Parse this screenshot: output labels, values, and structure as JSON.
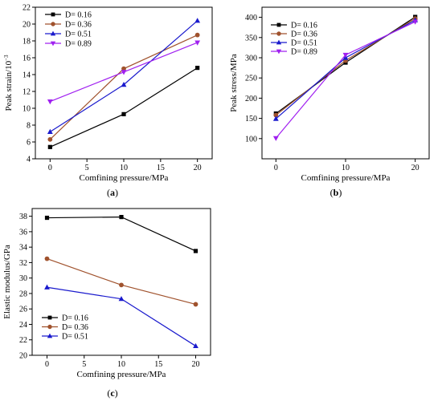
{
  "figure": {
    "panels": [
      {
        "label_open": "(",
        "label_letter": "a",
        "label_close": ")"
      },
      {
        "label_open": "(",
        "label_letter": "b",
        "label_close": ")"
      },
      {
        "label_open": "(",
        "label_letter": "c",
        "label_close": ")"
      }
    ]
  },
  "chart_data": [
    {
      "type": "line",
      "xlabel": "Comfining pressure/MPa",
      "ylabel": "Peak strain/10",
      "ylabel_superscript": "−3",
      "xlim": [
        -2,
        22
      ],
      "ylim": [
        4,
        22
      ],
      "xticks": [
        0,
        5,
        10,
        15,
        20
      ],
      "yticks": [
        4,
        6,
        8,
        10,
        12,
        14,
        16,
        18,
        20,
        22
      ],
      "grid": false,
      "legend_position": "top-left",
      "x": [
        0,
        10,
        20
      ],
      "series": [
        {
          "name": "D= 0.16",
          "values": [
            5.4,
            9.3,
            14.8
          ],
          "color": "#000000",
          "marker": "square"
        },
        {
          "name": "D= 0.36",
          "values": [
            6.3,
            14.7,
            18.7
          ],
          "color": "#a0522d",
          "marker": "circle"
        },
        {
          "name": "D= 0.51",
          "values": [
            7.2,
            12.8,
            20.4
          ],
          "color": "#1a1acd",
          "marker": "triangle-up"
        },
        {
          "name": "D= 0.89",
          "values": [
            10.8,
            14.3,
            17.8
          ],
          "color": "#a020f0",
          "marker": "triangle-down"
        }
      ]
    },
    {
      "type": "line",
      "xlabel": "Comfining pressure/MPa",
      "ylabel": "Peak stress/MPa",
      "xlim": [
        -2,
        22
      ],
      "ylim": [
        50,
        425
      ],
      "xticks": [
        0,
        10,
        20
      ],
      "yticks": [
        100,
        150,
        200,
        250,
        300,
        350,
        400
      ],
      "grid": false,
      "legend_position": "top-left",
      "x": [
        0,
        10,
        20
      ],
      "series": [
        {
          "name": "D= 0.16",
          "values": [
            162,
            288,
            401
          ],
          "color": "#000000",
          "marker": "square"
        },
        {
          "name": "D= 0.36",
          "values": [
            158,
            293,
            397
          ],
          "color": "#a0522d",
          "marker": "circle"
        },
        {
          "name": "D= 0.51",
          "values": [
            149,
            300,
            393
          ],
          "color": "#1a1acd",
          "marker": "triangle-up"
        },
        {
          "name": "D= 0.89",
          "values": [
            101,
            307,
            389
          ],
          "color": "#a020f0",
          "marker": "triangle-down"
        }
      ]
    },
    {
      "type": "line",
      "xlabel": "Comfining pressure/MPa",
      "ylabel": "Elastic modulus/GPa",
      "xlim": [
        -2,
        22
      ],
      "ylim": [
        20,
        39
      ],
      "xticks": [
        0,
        5,
        10,
        15,
        20
      ],
      "yticks": [
        20,
        22,
        24,
        26,
        28,
        30,
        32,
        34,
        36,
        38
      ],
      "grid": false,
      "legend_position": "bottom-left",
      "x": [
        0,
        10,
        20
      ],
      "series": [
        {
          "name": "D= 0.16",
          "values": [
            37.8,
            37.9,
            33.5
          ],
          "color": "#000000",
          "marker": "square"
        },
        {
          "name": "D= 0.36",
          "values": [
            32.5,
            29.1,
            26.6
          ],
          "color": "#a0522d",
          "marker": "circle"
        },
        {
          "name": "D= 0.51",
          "values": [
            28.8,
            27.3,
            21.2
          ],
          "color": "#1a1acd",
          "marker": "triangle-up"
        }
      ]
    }
  ]
}
